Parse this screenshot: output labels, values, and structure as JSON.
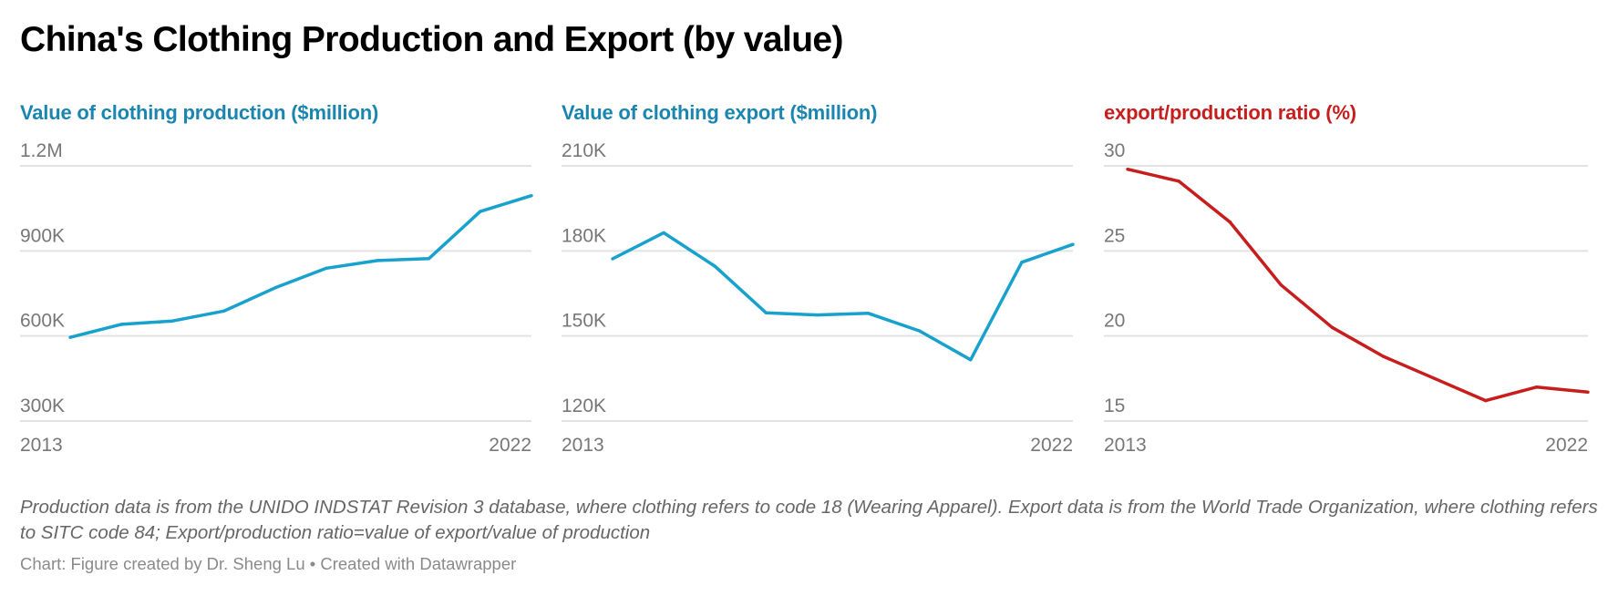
{
  "title": "China's Clothing Production and Export (by value)",
  "colors": {
    "production": "#18a1cd",
    "export": "#18a1cd",
    "ratio": "#c71e1d",
    "subtitle_blue": "#1a86b0",
    "subtitle_red": "#c71e1d",
    "grid": "#e3e3e3"
  },
  "chart_data": [
    {
      "type": "line",
      "title": "Value of clothing production ($million)",
      "x": [
        2013,
        2014,
        2015,
        2016,
        2017,
        2018,
        2019,
        2020,
        2021,
        2022
      ],
      "values": [
        595000,
        641000,
        653000,
        688000,
        770000,
        839000,
        866000,
        873000,
        1039000,
        1095000
      ],
      "ylim": [
        300000,
        1200000
      ],
      "yticks": [
        300000,
        600000,
        900000,
        1200000
      ],
      "ytick_labels": [
        "300K",
        "600K",
        "900K",
        "1.2M"
      ],
      "xtick_labels": [
        "2013",
        "2022"
      ],
      "grid": true,
      "color": "#18a1cd"
    },
    {
      "type": "line",
      "title": "Value of clothing export ($million)",
      "x": [
        2013,
        2014,
        2015,
        2016,
        2017,
        2018,
        2019,
        2020,
        2021,
        2022
      ],
      "values": [
        177200,
        186400,
        174600,
        158200,
        157400,
        158000,
        151800,
        141600,
        176000,
        182300
      ],
      "ylim": [
        120000,
        210000
      ],
      "yticks": [
        120000,
        150000,
        180000,
        210000
      ],
      "ytick_labels": [
        "120K",
        "150K",
        "180K",
        "210K"
      ],
      "xtick_labels": [
        "2013",
        "2022"
      ],
      "grid": true,
      "color": "#18a1cd"
    },
    {
      "type": "line",
      "title": "export/production ratio (%)",
      "x": [
        2013,
        2014,
        2015,
        2016,
        2017,
        2018,
        2019,
        2020,
        2021,
        2022
      ],
      "values": [
        29.8,
        29.1,
        26.7,
        23.0,
        20.5,
        18.8,
        17.5,
        16.2,
        17.0,
        16.7
      ],
      "ylim": [
        15,
        30
      ],
      "yticks": [
        15,
        20,
        25,
        30
      ],
      "ytick_labels": [
        "15",
        "20",
        "25",
        "30"
      ],
      "xtick_labels": [
        "2013",
        "2022"
      ],
      "grid": true,
      "color": "#c71e1d"
    }
  ],
  "notes": "Production data is from the UNIDO INDSTAT Revision 3 database, where clothing refers to code 18 (Wearing Apparel). Export data is from the World Trade Organization, where clothing refers to SITC code 84; Export/production ratio=value of export/value of production",
  "credit": "Chart: Figure created by Dr. Sheng Lu • Created with Datawrapper"
}
